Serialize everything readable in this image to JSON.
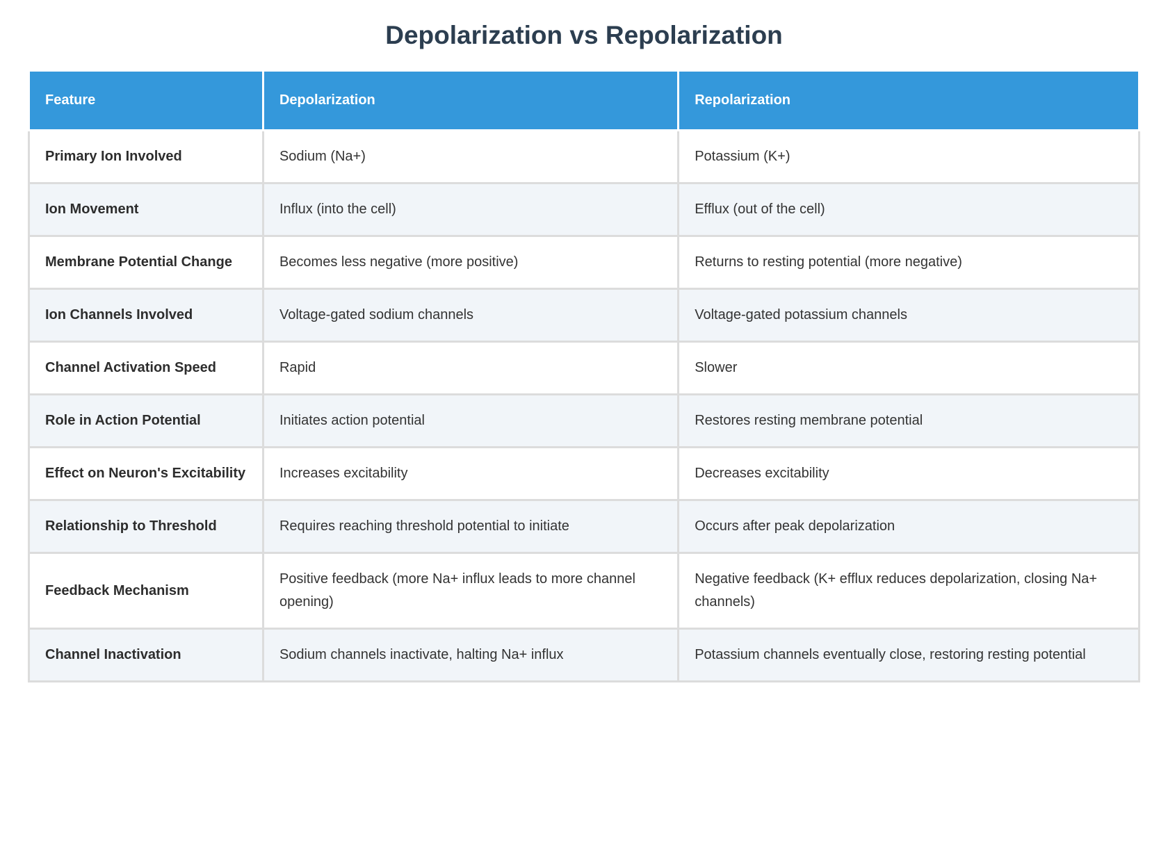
{
  "page": {
    "title": "Depolarization vs Repolarization"
  },
  "table": {
    "columns": [
      "Feature",
      "Depolarization",
      "Repolarization"
    ],
    "rows": [
      {
        "feature": "Primary Ion Involved",
        "depolarization": "Sodium (Na+)",
        "repolarization": "Potassium (K+)"
      },
      {
        "feature": "Ion Movement",
        "depolarization": "Influx (into the cell)",
        "repolarization": "Efflux (out of the cell)"
      },
      {
        "feature": "Membrane Potential Change",
        "depolarization": "Becomes less negative (more positive)",
        "repolarization": "Returns to resting potential (more negative)"
      },
      {
        "feature": "Ion Channels Involved",
        "depolarization": "Voltage-gated sodium channels",
        "repolarization": "Voltage-gated potassium channels"
      },
      {
        "feature": "Channel Activation Speed",
        "depolarization": "Rapid",
        "repolarization": "Slower"
      },
      {
        "feature": "Role in Action Potential",
        "depolarization": "Initiates action potential",
        "repolarization": "Restores resting membrane potential"
      },
      {
        "feature": "Effect on Neuron's Excitability",
        "depolarization": "Increases excitability",
        "repolarization": "Decreases excitability"
      },
      {
        "feature": "Relationship to Threshold",
        "depolarization": "Requires reaching threshold potential to initiate",
        "repolarization": "Occurs after peak depolarization"
      },
      {
        "feature": "Feedback Mechanism",
        "depolarization": "Positive feedback (more Na+ influx leads to more channel opening)",
        "repolarization": "Negative feedback (K+ efflux reduces depolarization, closing Na+ channels)"
      },
      {
        "feature": "Channel Inactivation",
        "depolarization": "Sodium channels inactivate, halting Na+ influx",
        "repolarization": "Potassium channels eventually close, restoring resting potential"
      }
    ]
  },
  "colors": {
    "header_bg": "#3498db",
    "header_text": "#ffffff",
    "title_text": "#2c3e50",
    "row_even_bg": "#f1f5f9",
    "row_odd_bg": "#ffffff",
    "body_text": "#333333",
    "border": "#dcdcdc"
  }
}
